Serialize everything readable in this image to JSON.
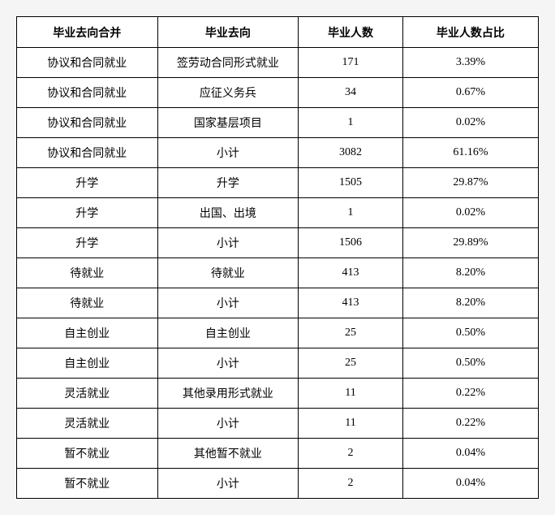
{
  "table": {
    "columns": [
      "毕业去向合并",
      "毕业去向",
      "毕业人数",
      "毕业人数占比"
    ],
    "rows": [
      [
        "协议和合同就业",
        "签劳动合同形式就业",
        "171",
        "3.39%"
      ],
      [
        "协议和合同就业",
        "应征义务兵",
        "34",
        "0.67%"
      ],
      [
        "协议和合同就业",
        "国家基层项目",
        "1",
        "0.02%"
      ],
      [
        "协议和合同就业",
        "小计",
        "3082",
        "61.16%"
      ],
      [
        "升学",
        "升学",
        "1505",
        "29.87%"
      ],
      [
        "升学",
        "出国、出境",
        "1",
        "0.02%"
      ],
      [
        "升学",
        "小计",
        "1506",
        "29.89%"
      ],
      [
        "待就业",
        "待就业",
        "413",
        "8.20%"
      ],
      [
        "待就业",
        "小计",
        "413",
        "8.20%"
      ],
      [
        "自主创业",
        "自主创业",
        "25",
        "0.50%"
      ],
      [
        "自主创业",
        "小计",
        "25",
        "0.50%"
      ],
      [
        "灵活就业",
        "其他录用形式就业",
        "11",
        "0.22%"
      ],
      [
        "灵活就业",
        "小计",
        "11",
        "0.22%"
      ],
      [
        "暂不就业",
        "其他暂不就业",
        "2",
        "0.04%"
      ],
      [
        "暂不就业",
        "小计",
        "2",
        "0.04%"
      ]
    ]
  }
}
